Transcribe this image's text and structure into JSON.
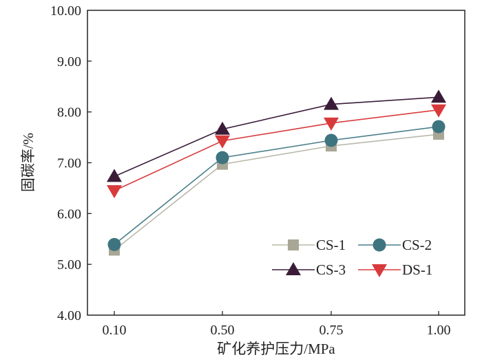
{
  "chart_data": {
    "type": "line",
    "title": "",
    "xlabel": "矿化养护压力/MPa",
    "ylabel": "固碳率/%",
    "categories": [
      "0.10",
      "0.50",
      "0.75",
      "1.00"
    ],
    "ylim": [
      4.0,
      10.0
    ],
    "yticks": [
      "4.00",
      "5.00",
      "6.00",
      "7.00",
      "8.00",
      "9.00",
      "10.00"
    ],
    "grid": false,
    "legend_placement": "bottom-right",
    "series": [
      {
        "name": "CS-1",
        "marker": "square",
        "color": "#a8a796",
        "line_color": "#b9b8aa",
        "values": [
          5.28,
          6.97,
          7.33,
          7.56
        ]
      },
      {
        "name": "CS-2",
        "marker": "circle",
        "color": "#3e7480",
        "line_color": "#4a7f8a",
        "values": [
          5.39,
          7.1,
          7.44,
          7.71
        ]
      },
      {
        "name": "CS-3",
        "marker": "triangle-up",
        "color": "#3a1c38",
        "line_color": "#3a1c38",
        "values": [
          6.73,
          7.66,
          8.15,
          8.29
        ]
      },
      {
        "name": "DS-1",
        "marker": "triangle-down",
        "color": "#d83a3c",
        "line_color": "#d83a3c",
        "values": [
          6.45,
          7.43,
          7.78,
          8.04
        ]
      }
    ]
  }
}
